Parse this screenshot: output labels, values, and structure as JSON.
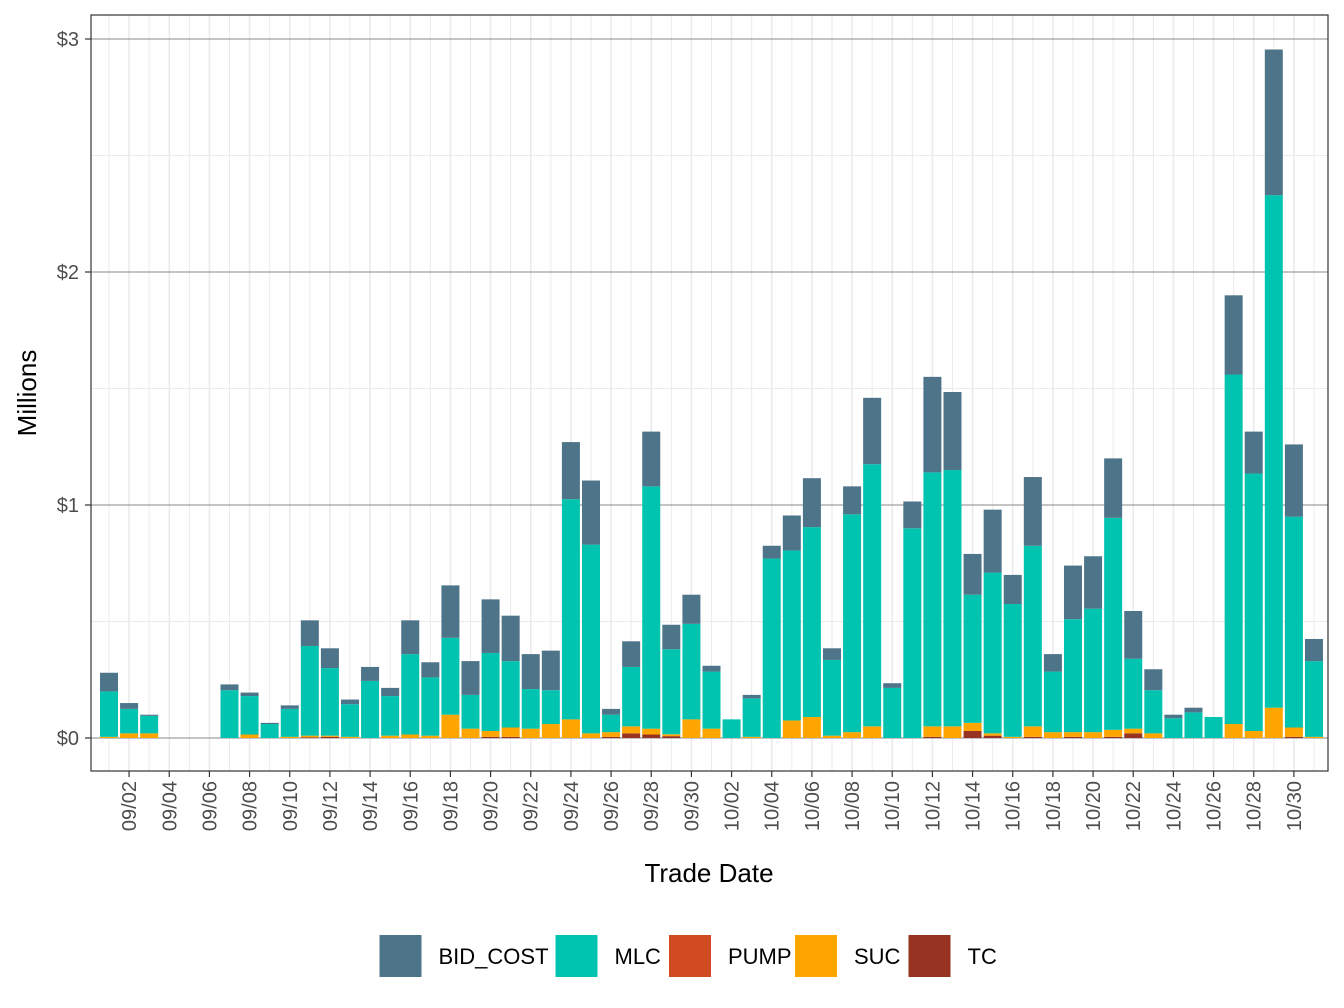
{
  "chart_data": {
    "type": "bar",
    "stacked": true,
    "title": "",
    "xlabel": "Trade Date",
    "ylabel": "Millions",
    "ylim": [
      -0.15,
      3.1
    ],
    "y_ticks": [
      0,
      1,
      2,
      3
    ],
    "y_tick_labels": [
      "$0",
      "$1",
      "$2",
      "$3"
    ],
    "x_tick_labels": [
      "09/02",
      "09/04",
      "09/06",
      "09/08",
      "09/10",
      "09/12",
      "09/14",
      "09/16",
      "09/18",
      "09/20",
      "09/22",
      "09/24",
      "09/26",
      "09/28",
      "09/30",
      "10/02",
      "10/04",
      "10/06",
      "10/08",
      "10/10",
      "10/12",
      "10/14",
      "10/16",
      "10/18",
      "10/20",
      "10/22",
      "10/24",
      "10/26",
      "10/28",
      "10/30"
    ],
    "legend_position": "bottom",
    "categories": [
      "09/01",
      "09/02",
      "09/03",
      "09/04",
      "09/05",
      "09/06",
      "09/07",
      "09/08",
      "09/09",
      "09/10",
      "09/11",
      "09/12",
      "09/13",
      "09/14",
      "09/15",
      "09/16",
      "09/17",
      "09/18",
      "09/19",
      "09/20",
      "09/21",
      "09/22",
      "09/23",
      "09/24",
      "09/25",
      "09/26",
      "09/27",
      "09/28",
      "09/29",
      "09/30",
      "10/01",
      "10/02",
      "10/03",
      "10/04",
      "10/05",
      "10/06",
      "10/07",
      "10/08",
      "10/09",
      "10/10",
      "10/11",
      "10/12",
      "10/13",
      "10/14",
      "10/15",
      "10/16",
      "10/17",
      "10/18",
      "10/19",
      "10/20",
      "10/21",
      "10/22",
      "10/23",
      "10/24",
      "10/25",
      "10/26",
      "10/27",
      "10/28",
      "10/29",
      "10/30",
      "10/31"
    ],
    "series": [
      {
        "name": "TC",
        "color": "#963321",
        "values": [
          0,
          0,
          0,
          0,
          0,
          0,
          0,
          0,
          0,
          0,
          0.003,
          0.005,
          0,
          0,
          0,
          0,
          0,
          0,
          0,
          0.005,
          0.005,
          0,
          0,
          0,
          0,
          0.005,
          0.02,
          0.015,
          0.008,
          0,
          0,
          0,
          0,
          0,
          0,
          0,
          0,
          0,
          0,
          0,
          0,
          0.005,
          0,
          0.03,
          0.01,
          0,
          0.005,
          0,
          0.005,
          0,
          0.005,
          0.02,
          0,
          0,
          0,
          0,
          0,
          0,
          0,
          0.005,
          0
        ]
      },
      {
        "name": "PUMP",
        "color": "#D04A22",
        "values": [
          0,
          0,
          0,
          0,
          0,
          0,
          0,
          0,
          0,
          0,
          0,
          0,
          0,
          0,
          0,
          0,
          0,
          0,
          0,
          0,
          0,
          0,
          0,
          0,
          0,
          0,
          0,
          0,
          0,
          0,
          0,
          0,
          0,
          0,
          0,
          0,
          0,
          0,
          0,
          0,
          0,
          0,
          0,
          0,
          0,
          0,
          0,
          0,
          0,
          0,
          0,
          0,
          0,
          0,
          0,
          0,
          0,
          0,
          0,
          0,
          0
        ]
      },
      {
        "name": "SUC",
        "color": "#FFA500",
        "values": [
          0.005,
          0.02,
          0.02,
          0,
          0,
          0,
          0,
          0.015,
          0,
          0.005,
          0.007,
          0.005,
          0.005,
          0,
          0.01,
          0.015,
          0.01,
          0.1,
          0.04,
          0.025,
          0.04,
          0.04,
          0.06,
          0.08,
          0.02,
          0.02,
          0.03,
          0.025,
          0.008,
          0.08,
          0.04,
          0,
          0.005,
          0,
          0.075,
          0.09,
          0.01,
          0.025,
          0.05,
          0,
          0,
          0.045,
          0.05,
          0.035,
          0.01,
          0.005,
          0.045,
          0.025,
          0.02,
          0.025,
          0.03,
          0.02,
          0.02,
          0,
          0,
          0,
          0.06,
          0.03,
          0.13,
          0.04,
          0.005
        ]
      },
      {
        "name": "MLC",
        "color": "#00C4B0",
        "values": [
          0.195,
          0.105,
          0.075,
          0,
          0,
          0,
          0.205,
          0.165,
          0.06,
          0.12,
          0.385,
          0.29,
          0.14,
          0.245,
          0.17,
          0.345,
          0.25,
          0.33,
          0.145,
          0.335,
          0.285,
          0.17,
          0.145,
          0.945,
          0.81,
          0.075,
          0.255,
          1.04,
          0.365,
          0.41,
          0.245,
          0.08,
          0.165,
          0.77,
          0.73,
          0.815,
          0.325,
          0.935,
          1.125,
          0.215,
          0.9,
          1.09,
          1.1,
          0.55,
          0.69,
          0.57,
          0.775,
          0.26,
          0.485,
          0.53,
          0.91,
          0.3,
          0.185,
          0.085,
          0.11,
          0.09,
          1.5,
          1.105,
          2.2,
          0.905,
          0.325
        ]
      },
      {
        "name": "BID_COST",
        "color": "#4E7489",
        "values": [
          0.08,
          0.025,
          0.005,
          0,
          0,
          0,
          0.025,
          0.015,
          0.005,
          0.015,
          0.11,
          0.085,
          0.02,
          0.06,
          0.035,
          0.145,
          0.065,
          0.225,
          0.145,
          0.23,
          0.195,
          0.15,
          0.17,
          0.245,
          0.275,
          0.025,
          0.11,
          0.235,
          0.105,
          0.125,
          0.025,
          0,
          0.015,
          0.055,
          0.15,
          0.21,
          0.05,
          0.12,
          0.285,
          0.02,
          0.115,
          0.41,
          0.335,
          0.175,
          0.27,
          0.125,
          0.295,
          0.075,
          0.23,
          0.225,
          0.255,
          0.205,
          0.09,
          0.015,
          0.02,
          0,
          0.34,
          0.18,
          0.625,
          0.31,
          0.095
        ]
      }
    ]
  },
  "legend": {
    "items": [
      {
        "label": "BID_COST",
        "color": "#4E7489"
      },
      {
        "label": "MLC",
        "color": "#00C4B0"
      },
      {
        "label": "PUMP",
        "color": "#D04A22"
      },
      {
        "label": "SUC",
        "color": "#FFA500"
      },
      {
        "label": "TC",
        "color": "#963321"
      }
    ]
  },
  "colors": {
    "panel_border": "#333333",
    "major_grid": "#888888",
    "minor_grid": "#ebebeb",
    "tick_text": "#4d4d4d"
  }
}
